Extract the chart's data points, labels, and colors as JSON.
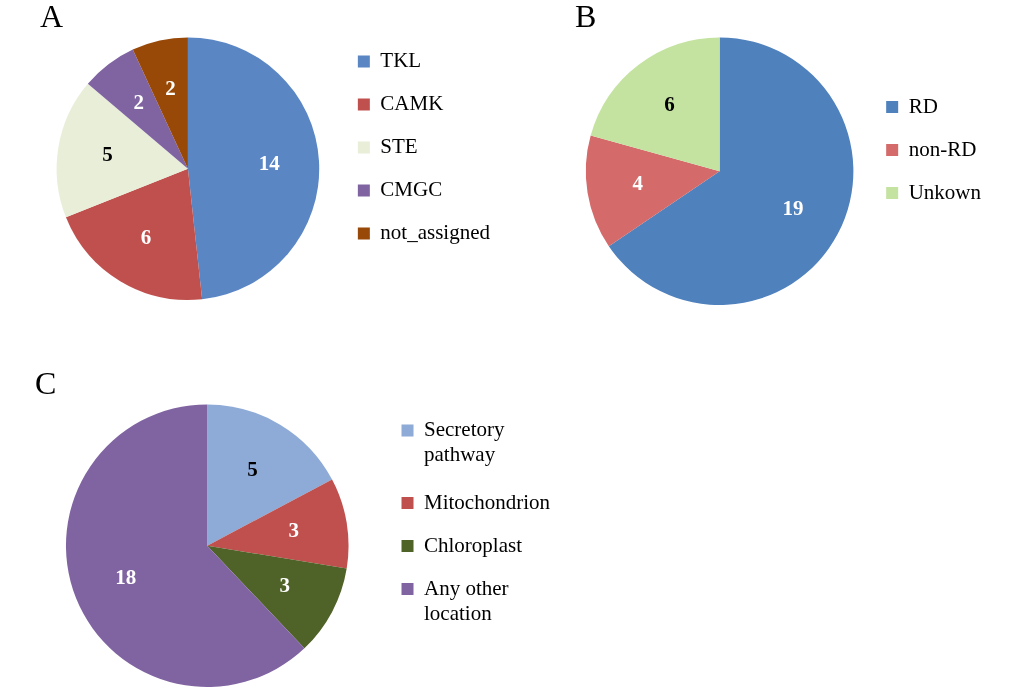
{
  "chart_data": [
    {
      "type": "pie",
      "title": "A",
      "categories": [
        "TKL",
        "CAMK",
        "STE",
        "CMGC",
        "not_assigned"
      ],
      "values": [
        14,
        6,
        5,
        2,
        2
      ],
      "colors": [
        "#5b86c4",
        "#c0504d",
        "#e8eed8",
        "#8064a2",
        "#984807"
      ],
      "data_labels": true,
      "legend": "right"
    },
    {
      "type": "pie",
      "title": "B",
      "categories": [
        "RD",
        "non-RD",
        "Unkown"
      ],
      "values": [
        19,
        4,
        6
      ],
      "colors": [
        "#4f81bd",
        "#d46a6a",
        "#c4e3a0"
      ],
      "data_labels": true,
      "legend": "right"
    },
    {
      "type": "pie",
      "title": "C",
      "categories": [
        "Secretory pathway",
        "Mitochondrion",
        "Chloroplast",
        "Any other location"
      ],
      "values": [
        5,
        3,
        3,
        18
      ],
      "colors": [
        "#8eaad6",
        "#c0504d",
        "#4f6228",
        "#8064a2"
      ],
      "data_labels": true,
      "legend": "right"
    }
  ]
}
